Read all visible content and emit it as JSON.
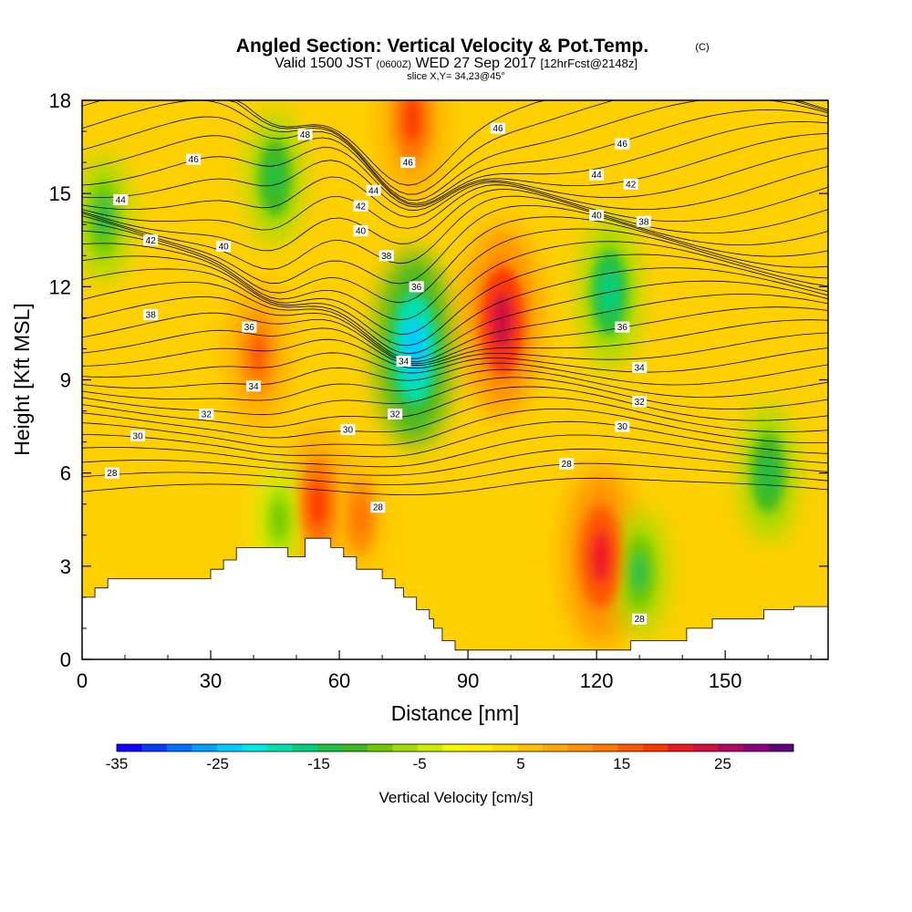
{
  "chart_data": {
    "type": "heatmap",
    "title": "Angled Section: Vertical Velocity & Pot.Temp.",
    "title_mark": "(C)",
    "subtitle_parts": [
      "Valid 1500 JST",
      "(0600Z)",
      "WED 27 Sep 2017",
      "[12hrFcst@2148z]"
    ],
    "slice_label": "slice X,Y= 34,23@45°",
    "xlabel": "Distance [nm]",
    "ylabel": "Height [Kft MSL]",
    "xlim": [
      0,
      174
    ],
    "ylim": [
      0,
      18
    ],
    "x_ticks": [
      0,
      30,
      60,
      90,
      120,
      150
    ],
    "x_tick_labels": [
      "0",
      "30",
      "60",
      "90",
      "120",
      "150"
    ],
    "y_ticks": [
      0,
      3,
      6,
      9,
      12,
      15,
      18
    ],
    "y_tick_labels": [
      "0",
      "3",
      "6",
      "9",
      "12",
      "15",
      "18"
    ],
    "colorbar": {
      "label": "Vertical Velocity [cm/s]",
      "min": -35,
      "max": 32,
      "tick_values": [
        -35,
        -25,
        -15,
        -5,
        5,
        15,
        25
      ],
      "tick_labels": [
        "-35",
        "-25",
        "-15",
        "-5",
        "5",
        "15",
        "25"
      ],
      "colors": [
        "#1400ff",
        "#0a3cff",
        "#0070ff",
        "#00a0ff",
        "#00ccff",
        "#00e8e8",
        "#00e0b0",
        "#00d080",
        "#20c040",
        "#40b820",
        "#70c800",
        "#a0dc00",
        "#d0ec00",
        "#f0f800",
        "#ffee00",
        "#ffd800",
        "#ffc000",
        "#ffa800",
        "#ff9000",
        "#ff7800",
        "#ff5800",
        "#ff3800",
        "#f01820",
        "#d01040",
        "#b00860",
        "#8c0080",
        "#60007a"
      ]
    },
    "velocity_extrema": [
      {
        "x": 98,
        "y": 10.9,
        "w": 24
      },
      {
        "x": 121,
        "y": 3.3,
        "w": 22
      },
      {
        "x": 41,
        "y": 9.8,
        "w": 16
      },
      {
        "x": 55,
        "y": 5.0,
        "w": 18
      },
      {
        "x": 65,
        "y": 4.6,
        "w": 14
      },
      {
        "x": 77,
        "y": 17.4,
        "w": 18
      },
      {
        "x": 77.5,
        "y": 10.0,
        "w": -25
      },
      {
        "x": 123,
        "y": 11.8,
        "w": -17
      },
      {
        "x": 160,
        "y": 6.0,
        "w": -15
      },
      {
        "x": 5,
        "y": 14.2,
        "w": -13
      },
      {
        "x": 45,
        "y": 15.5,
        "w": -14
      },
      {
        "x": 130,
        "y": 2.8,
        "w": -13
      },
      {
        "x": 46,
        "y": 4.5,
        "w": -10
      }
    ],
    "theta_contours": {
      "levels": [
        28,
        30,
        32,
        34,
        36,
        38,
        40,
        42,
        44,
        46,
        48
      ],
      "labels": [
        {
          "text": "28",
          "x": 7,
          "y": 6.0
        },
        {
          "text": "28",
          "x": 69,
          "y": 4.9
        },
        {
          "text": "28",
          "x": 113,
          "y": 6.3
        },
        {
          "text": "28",
          "x": 130,
          "y": 1.3
        },
        {
          "text": "30",
          "x": 13,
          "y": 7.2
        },
        {
          "text": "30",
          "x": 62,
          "y": 7.4
        },
        {
          "text": "30",
          "x": 126,
          "y": 7.5
        },
        {
          "text": "32",
          "x": 29,
          "y": 7.9
        },
        {
          "text": "32",
          "x": 73,
          "y": 7.9
        },
        {
          "text": "32",
          "x": 130,
          "y": 8.3
        },
        {
          "text": "34",
          "x": 40,
          "y": 8.8
        },
        {
          "text": "34",
          "x": 75,
          "y": 9.6
        },
        {
          "text": "34",
          "x": 130,
          "y": 9.4
        },
        {
          "text": "36",
          "x": 39,
          "y": 10.7
        },
        {
          "text": "36",
          "x": 78,
          "y": 12.0
        },
        {
          "text": "36",
          "x": 126,
          "y": 10.7
        },
        {
          "text": "38",
          "x": 16,
          "y": 11.1
        },
        {
          "text": "38",
          "x": 71,
          "y": 13.0
        },
        {
          "text": "38",
          "x": 131,
          "y": 14.1
        },
        {
          "text": "40",
          "x": 33,
          "y": 13.3
        },
        {
          "text": "40",
          "x": 65,
          "y": 13.8
        },
        {
          "text": "40",
          "x": 120,
          "y": 14.3
        },
        {
          "text": "42",
          "x": 16,
          "y": 13.5
        },
        {
          "text": "42",
          "x": 65,
          "y": 14.6
        },
        {
          "text": "42",
          "x": 128,
          "y": 15.3
        },
        {
          "text": "44",
          "x": 9,
          "y": 14.8
        },
        {
          "text": "44",
          "x": 68,
          "y": 15.1
        },
        {
          "text": "44",
          "x": 120,
          "y": 15.6
        },
        {
          "text": "46",
          "x": 26,
          "y": 16.1
        },
        {
          "text": "46",
          "x": 76,
          "y": 16.0
        },
        {
          "text": "46",
          "x": 126,
          "y": 16.6
        },
        {
          "text": "46",
          "x": 97,
          "y": 17.1
        },
        {
          "text": "48",
          "x": 52,
          "y": 16.9
        }
      ]
    },
    "terrain": {
      "x": [
        0,
        3,
        3,
        6,
        6,
        9,
        9,
        30,
        30,
        33,
        33,
        36,
        36,
        39,
        39,
        48,
        48,
        52,
        52,
        58,
        58,
        61,
        61,
        64,
        64,
        70,
        70,
        73,
        73,
        75,
        75,
        78,
        78,
        81,
        81,
        82,
        82,
        84,
        84,
        87,
        87,
        90,
        90,
        92,
        92,
        128,
        128,
        141,
        141,
        147,
        147,
        159,
        159,
        166,
        166,
        174
      ],
      "y": [
        2.0,
        2.0,
        2.3,
        2.3,
        2.6,
        2.6,
        2.6,
        2.6,
        2.9,
        2.9,
        3.2,
        3.2,
        3.6,
        3.6,
        3.6,
        3.6,
        3.3,
        3.3,
        3.9,
        3.9,
        3.6,
        3.6,
        3.3,
        3.3,
        2.9,
        2.9,
        2.6,
        2.6,
        2.3,
        2.3,
        2.0,
        2.0,
        1.6,
        1.6,
        1.3,
        1.3,
        1.0,
        1.0,
        0.6,
        0.6,
        0.3,
        0.3,
        0.3,
        0.3,
        0.3,
        0.3,
        0.6,
        0.6,
        1.0,
        1.0,
        1.3,
        1.3,
        1.6,
        1.6,
        1.7,
        1.7
      ]
    }
  }
}
